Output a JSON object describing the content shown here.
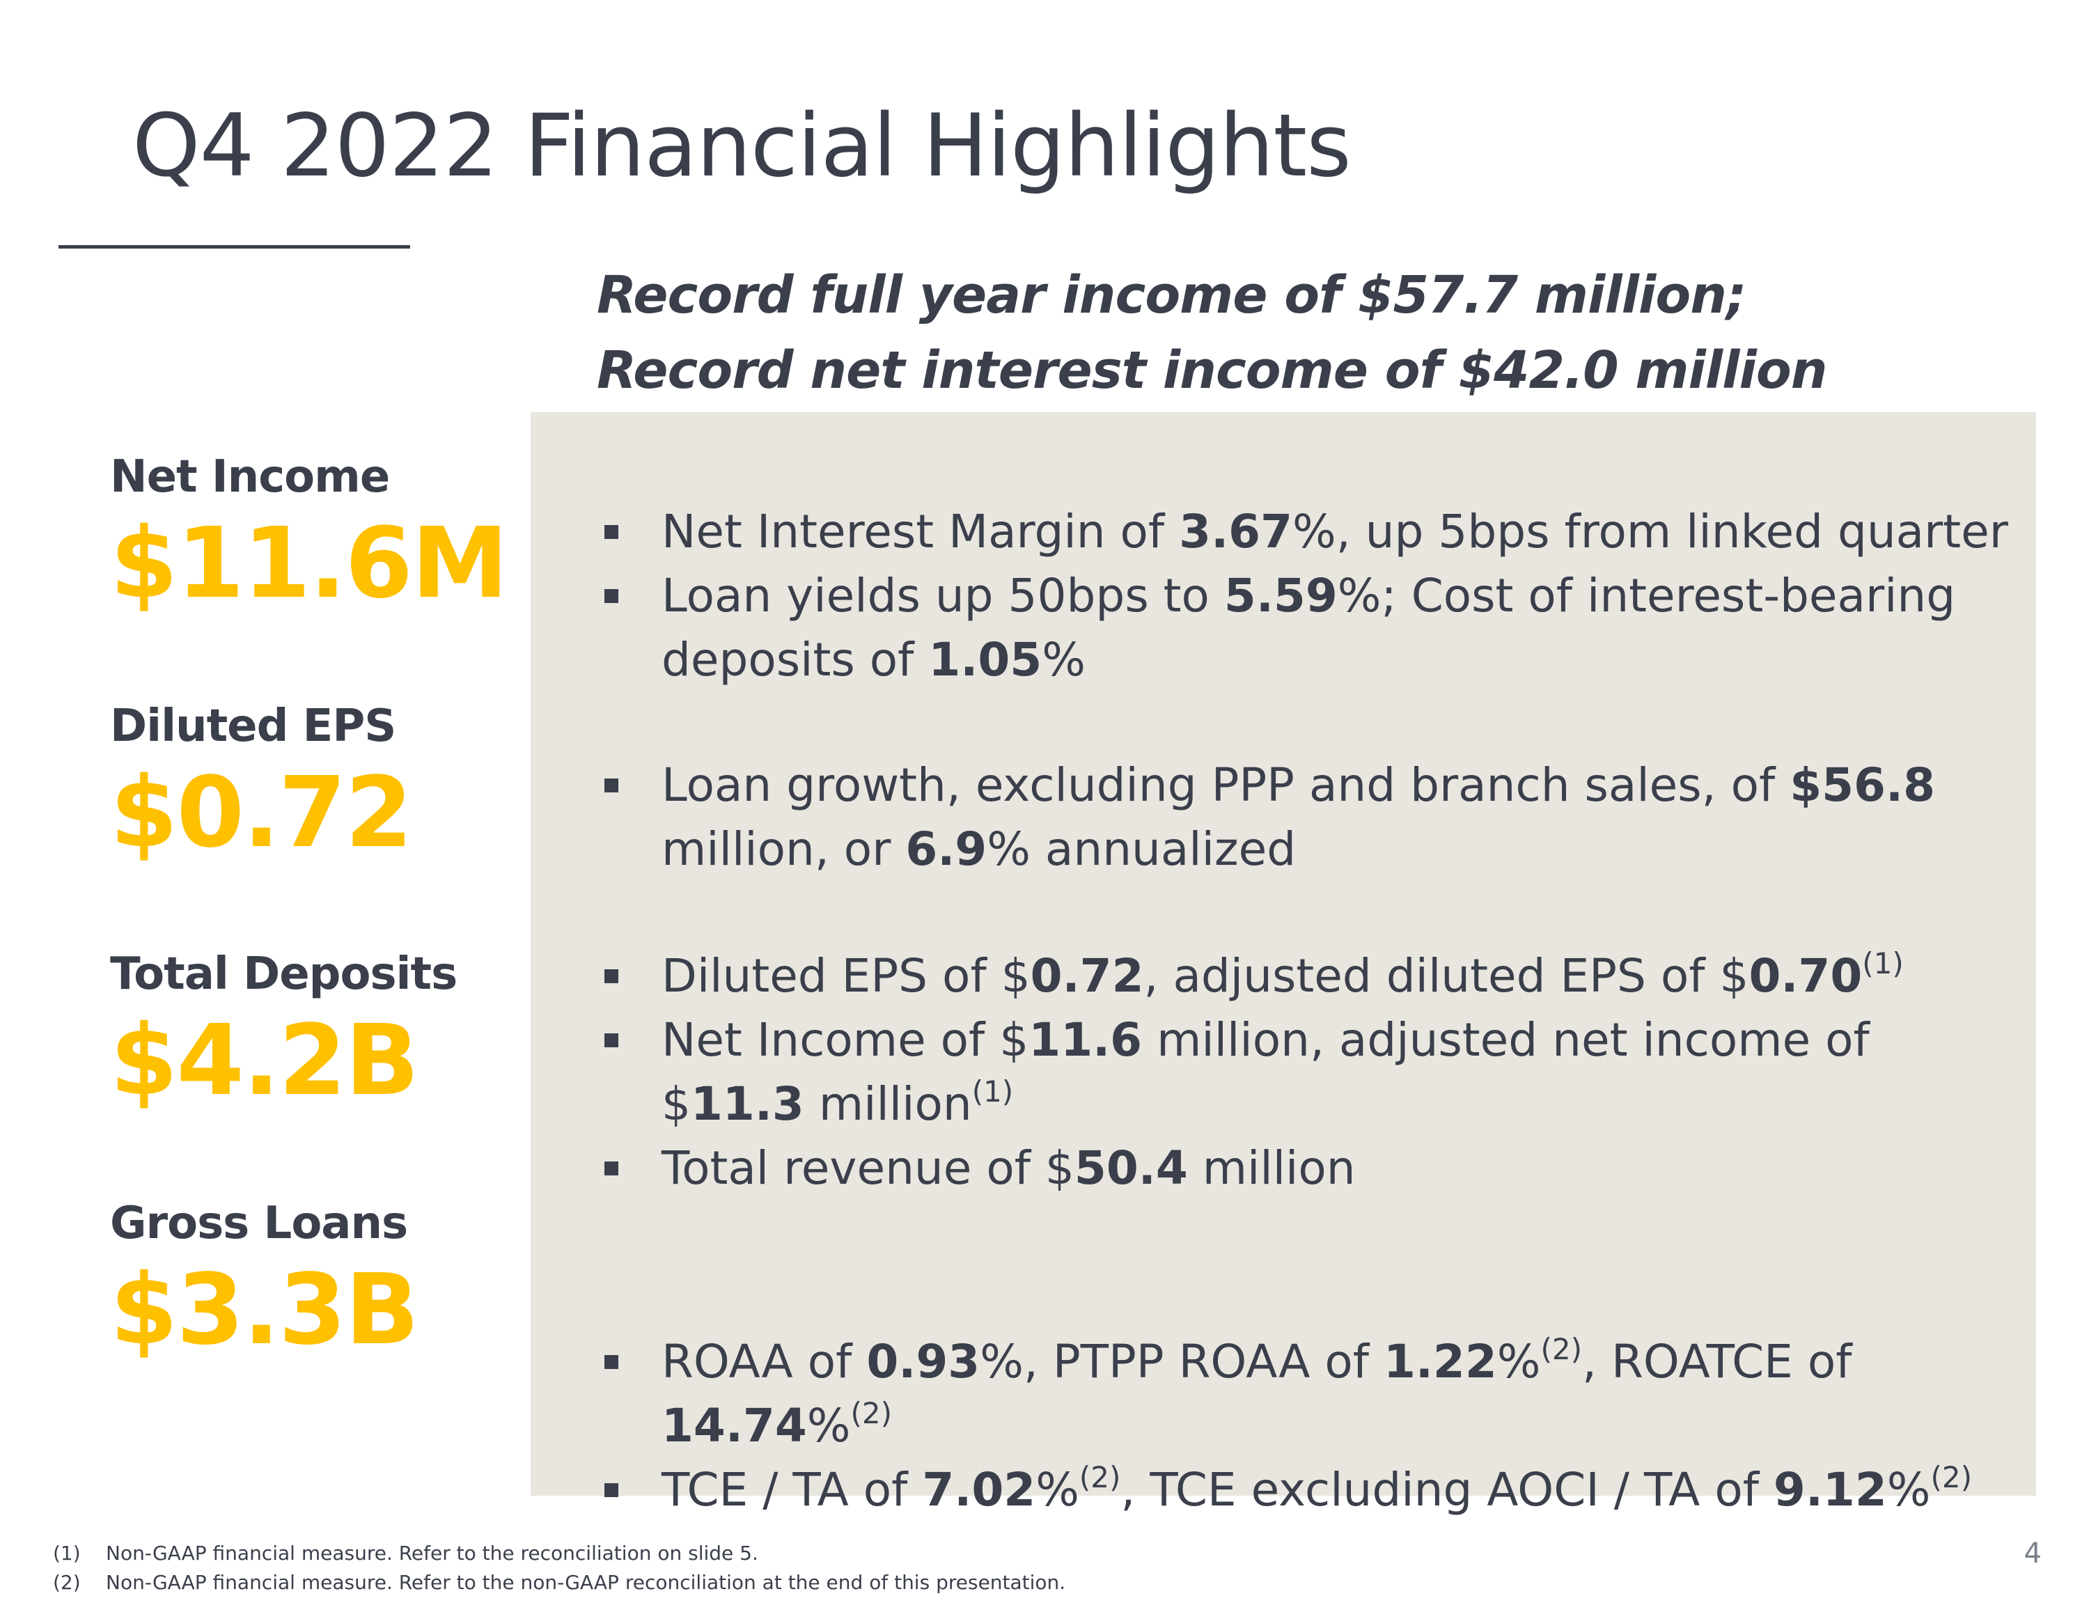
{
  "slide": {
    "title": "Q4 2022 Financial Highlights",
    "subtitle_line1": "Record full year income of $57.7 million;",
    "subtitle_line2": "Record net interest income of $42.0 million",
    "page_number": "4"
  },
  "colors": {
    "accent": "#ffc000",
    "text": "#3a3f4b",
    "panel": "#e8e6df"
  },
  "metrics": [
    {
      "label": "Net Income",
      "value": "$11.6M"
    },
    {
      "label": "Diluted EPS",
      "value": "$0.72"
    },
    {
      "label": "Total Deposits",
      "value": "$4.2B"
    },
    {
      "label": "Gross Loans",
      "value": "$3.3B"
    }
  ],
  "bullets": {
    "b1": {
      "t1": "Net Interest Margin of ",
      "v1": "3.67",
      "t2": "%, up 5bps from linked quarter"
    },
    "b2": {
      "t1": "Loan yields up 50bps to ",
      "v1": "5.59",
      "t2": "%; Cost of interest-bearing deposits of ",
      "v2": "1.05",
      "t3": "%"
    },
    "b3": {
      "t1": "Loan growth, excluding PPP and branch sales, of ",
      "v1": "$56.8",
      "t2": " million, or ",
      "v2": "6.9",
      "t3": "% annualized"
    },
    "b4": {
      "t1": "Diluted EPS of $",
      "v1": "0.72",
      "t2": ", adjusted diluted EPS of $",
      "v2": "0.70",
      "s1": "(1)"
    },
    "b5": {
      "t1": "Net Income of $",
      "v1": "11.6",
      "t2": " million, adjusted net income of $",
      "v2": "11.3",
      "t3": " million",
      "s1": "(1)"
    },
    "b6": {
      "t1": "Total revenue of $",
      "v1": "50.4",
      "t2": " million"
    },
    "b7": {
      "t1": "ROAA of ",
      "v1": "0.93",
      "t2": "%, PTPP ROAA of ",
      "v2": "1.22",
      "t3": "%",
      "s1": "(2)",
      "t4": ", ROATCE of ",
      "v3": "14.74",
      "t5": "%",
      "s2": "(2)"
    },
    "b8": {
      "t1": "TCE / TA of ",
      "v1": "7.02",
      "t2": "%",
      "s1": "(2)",
      "t3": ", TCE excluding AOCI / TA of ",
      "v2": "9.12",
      "t4": "%",
      "s2": "(2)"
    }
  },
  "footnotes": [
    {
      "num": "(1)",
      "text": "Non-GAAP financial measure. Refer to the reconciliation on slide 5."
    },
    {
      "num": "(2)",
      "text": "Non-GAAP financial measure. Refer to the non-GAAP reconciliation at the end of this presentation."
    }
  ]
}
